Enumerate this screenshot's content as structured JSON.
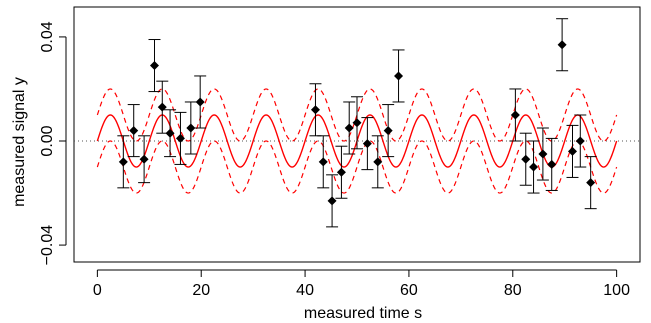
{
  "chart_data": {
    "type": "scatter",
    "title": "",
    "xlabel": "measured time s",
    "ylabel": "measured signal y",
    "xlim": [
      -4.5,
      104.5
    ],
    "ylim": [
      -0.0465,
      0.0515
    ],
    "x_ticks": [
      0,
      20,
      40,
      60,
      80,
      100
    ],
    "x_tick_labels": [
      "0",
      "20",
      "40",
      "60",
      "80",
      "100"
    ],
    "y_ticks": [
      -0.04,
      0.0,
      0.04
    ],
    "y_tick_labels": [
      "−0.04",
      "0.00",
      "0.04"
    ],
    "grid": false,
    "legend": "none",
    "reference_line": {
      "y": 0.0,
      "style": "dotted",
      "color": "#555555"
    },
    "fit_curve": {
      "label": "",
      "color": "#ff0000",
      "amplitude": 0.01,
      "period": 10,
      "phase_x_of_max": 2.5,
      "x_range": [
        0,
        100
      ],
      "envelope_offset": 0.01,
      "envelope_style": "dashed"
    },
    "points": [
      {
        "x": 5,
        "y": -0.008,
        "err": 0.01
      },
      {
        "x": 7,
        "y": 0.004,
        "err": 0.01
      },
      {
        "x": 9,
        "y": -0.007,
        "err": 0.009
      },
      {
        "x": 11,
        "y": 0.029,
        "err": 0.01
      },
      {
        "x": 12.5,
        "y": 0.013,
        "err": 0.01
      },
      {
        "x": 14,
        "y": 0.003,
        "err": 0.009
      },
      {
        "x": 16,
        "y": 0.001,
        "err": 0.01
      },
      {
        "x": 18,
        "y": 0.005,
        "err": 0.01
      },
      {
        "x": 19.8,
        "y": 0.015,
        "err": 0.01
      },
      {
        "x": 42,
        "y": 0.012,
        "err": 0.01
      },
      {
        "x": 43.5,
        "y": -0.008,
        "err": 0.01
      },
      {
        "x": 45.2,
        "y": -0.023,
        "err": 0.01
      },
      {
        "x": 47,
        "y": -0.012,
        "err": 0.01
      },
      {
        "x": 48.5,
        "y": 0.005,
        "err": 0.01
      },
      {
        "x": 50,
        "y": 0.007,
        "err": 0.01
      },
      {
        "x": 52,
        "y": -0.001,
        "err": 0.01
      },
      {
        "x": 54,
        "y": -0.008,
        "err": 0.01
      },
      {
        "x": 56,
        "y": 0.004,
        "err": 0.01
      },
      {
        "x": 58,
        "y": 0.025,
        "err": 0.01
      },
      {
        "x": 80.5,
        "y": 0.01,
        "err": 0.01
      },
      {
        "x": 82.5,
        "y": -0.007,
        "err": 0.01
      },
      {
        "x": 84,
        "y": -0.01,
        "err": 0.01
      },
      {
        "x": 85.8,
        "y": -0.005,
        "err": 0.01
      },
      {
        "x": 87.5,
        "y": -0.009,
        "err": 0.01
      },
      {
        "x": 89.5,
        "y": 0.037,
        "err": 0.01
      },
      {
        "x": 91.5,
        "y": -0.004,
        "err": 0.01
      },
      {
        "x": 93,
        "y": 0.0,
        "err": 0.01
      },
      {
        "x": 95,
        "y": -0.016,
        "err": 0.01
      }
    ]
  }
}
